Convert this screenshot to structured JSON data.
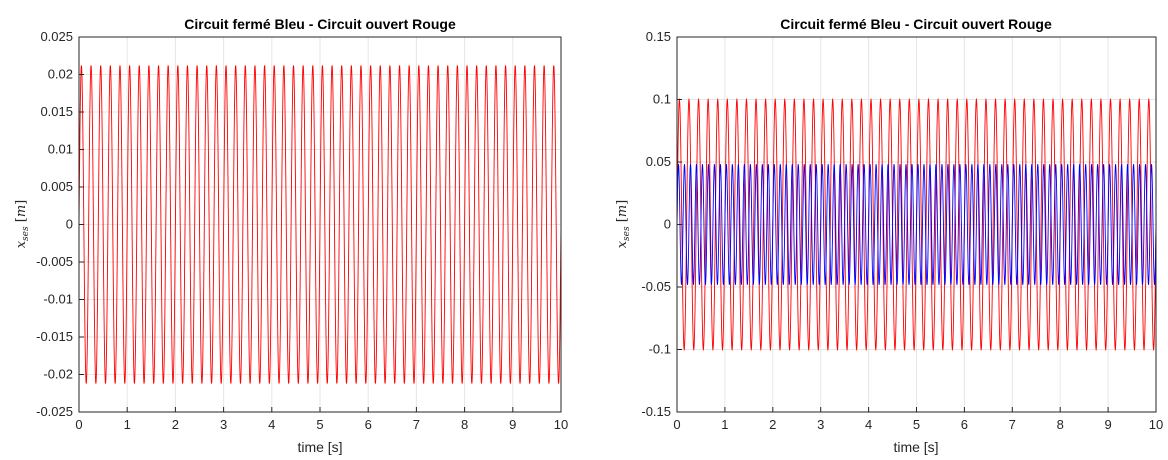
{
  "chart_data": [
    {
      "type": "line",
      "title": "Circuit fermé Bleu - Circuit ouvert Rouge",
      "xlabel": "time [s]",
      "ylabel": "x_{ses} [m]",
      "xlim": [
        0,
        10
      ],
      "ylim": [
        -0.025,
        0.025
      ],
      "xticks": [
        "0",
        "1",
        "2",
        "3",
        "4",
        "5",
        "6",
        "7",
        "8",
        "9",
        "10"
      ],
      "yticks": [
        "-0.025",
        "-0.02",
        "-0.015",
        "-0.01",
        "-0.005",
        "0",
        "0.005",
        "0.01",
        "0.015",
        "0.02",
        "0.025"
      ],
      "grid": true,
      "series": [
        {
          "color": "#ff0000",
          "shape": "sine",
          "amplitude": 0.0212,
          "frequency_hz": 5.0,
          "x": [
            0,
            10
          ]
        }
      ]
    },
    {
      "type": "line",
      "title": "Circuit fermé Bleu - Circuit ouvert Rouge",
      "xlabel": "time [s]",
      "ylabel": "x_{ses} [m]",
      "xlim": [
        0,
        10
      ],
      "ylim": [
        -0.15,
        0.15
      ],
      "xticks": [
        "0",
        "1",
        "2",
        "3",
        "4",
        "5",
        "6",
        "7",
        "8",
        "9",
        "10"
      ],
      "yticks": [
        "-0.15",
        "-0.1",
        "-0.05",
        "0",
        "0.05",
        "0.1",
        "0.15"
      ],
      "grid": true,
      "series": [
        {
          "color": "#ff0000",
          "shape": "sine",
          "amplitude": 0.1,
          "frequency_hz": 5.0,
          "x": [
            0,
            10
          ]
        },
        {
          "color": "#0000ff",
          "shape": "sine",
          "amplitude": 0.048,
          "frequency_hz": 8.0,
          "x": [
            0,
            10
          ]
        }
      ]
    }
  ]
}
